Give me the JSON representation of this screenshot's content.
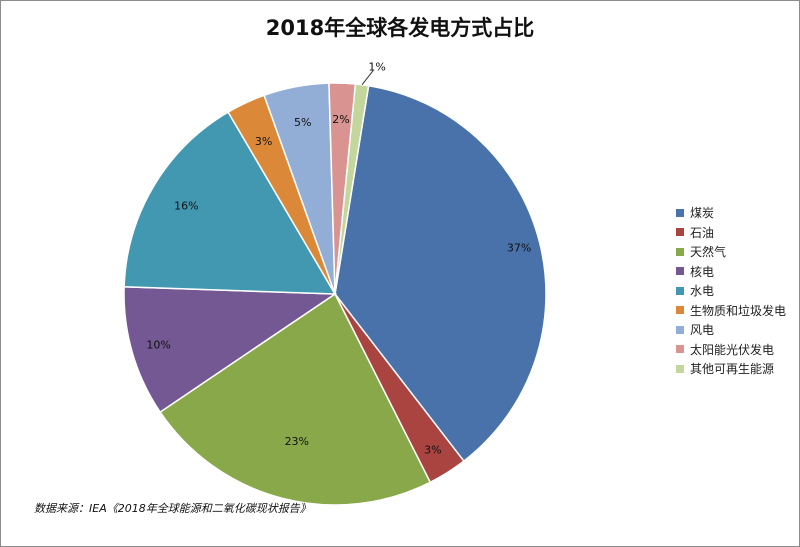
{
  "chart_data": {
    "type": "pie",
    "title": "2018年全球各发电方式占比",
    "legend_position": "right",
    "slices": [
      {
        "label": "煤炭",
        "value": 37,
        "display": "37%",
        "color": "#4a72aa"
      },
      {
        "label": "石油",
        "value": 3,
        "display": "3%",
        "color": "#a94441"
      },
      {
        "label": "天然气",
        "value": 23,
        "display": "23%",
        "color": "#88a84a"
      },
      {
        "label": "核电",
        "value": 10,
        "display": "10%",
        "color": "#735894"
      },
      {
        "label": "水电",
        "value": 16,
        "display": "16%",
        "color": "#4298b1"
      },
      {
        "label": "生物质和垃圾发电",
        "value": 3,
        "display": "3%",
        "color": "#db8938"
      },
      {
        "label": "风电",
        "value": 5,
        "display": "5%",
        "color": "#93aed6"
      },
      {
        "label": "太阳能光伏发电",
        "value": 2,
        "display": "2%",
        "color": "#d99391"
      },
      {
        "label": "其他可再生能源",
        "value": 1,
        "display": "1%",
        "color": "#c3d69b"
      }
    ]
  },
  "source_note": "数据来源：IEA《2018年全球能源和二氧化碳现状报告》"
}
